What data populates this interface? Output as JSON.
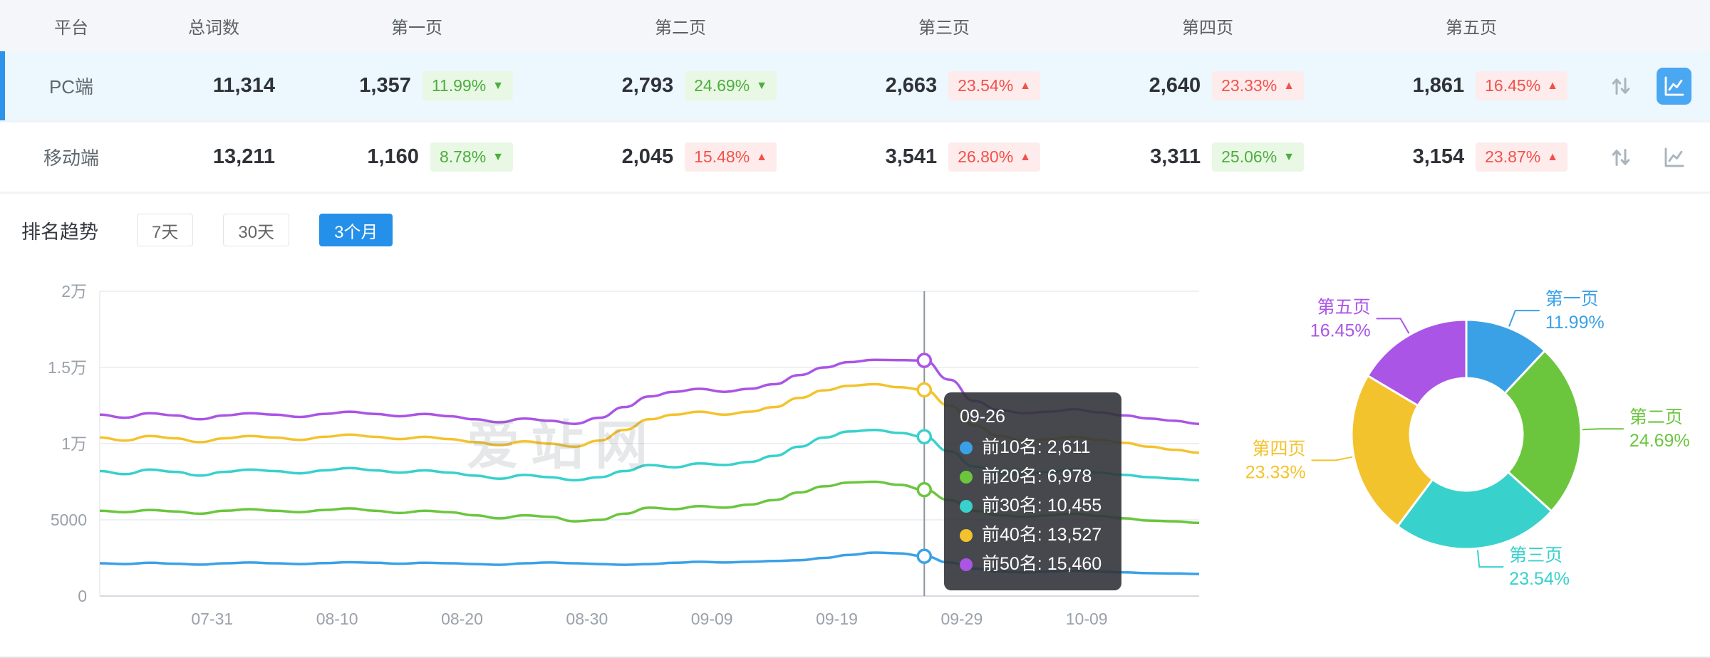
{
  "colors": {
    "accent_blue": "#2590e9",
    "good_green": "#4cae3d",
    "bad_red": "#f2514d",
    "series_blue": "#3ba1e6",
    "series_green": "#6bc63e",
    "series_cyan": "#38d1cc",
    "series_yellow": "#f3c32e",
    "series_purple": "#aa55e5"
  },
  "table": {
    "headers": {
      "platform": "平台",
      "total": "总词数",
      "page1": "第一页",
      "page2": "第二页",
      "page3": "第三页",
      "page4": "第四页",
      "page5": "第五页"
    },
    "rows": [
      {
        "platform": "PC端",
        "total": "11,314",
        "selected": true,
        "pages": [
          {
            "count": "1,357",
            "pct": "11.99%",
            "arrow": "▼",
            "trend": "down"
          },
          {
            "count": "2,793",
            "pct": "24.69%",
            "arrow": "▼",
            "trend": "down"
          },
          {
            "count": "2,663",
            "pct": "23.54%",
            "arrow": "▲",
            "trend": "up"
          },
          {
            "count": "2,640",
            "pct": "23.33%",
            "arrow": "▲",
            "trend": "up"
          },
          {
            "count": "1,861",
            "pct": "16.45%",
            "arrow": "▲",
            "trend": "up"
          }
        ]
      },
      {
        "platform": "移动端",
        "total": "13,211",
        "selected": false,
        "pages": [
          {
            "count": "1,160",
            "pct": "8.78%",
            "arrow": "▼",
            "trend": "down"
          },
          {
            "count": "2,045",
            "pct": "15.48%",
            "arrow": "▲",
            "trend": "up"
          },
          {
            "count": "3,541",
            "pct": "26.80%",
            "arrow": "▲",
            "trend": "up"
          },
          {
            "count": "3,311",
            "pct": "25.06%",
            "arrow": "▼",
            "trend": "down"
          },
          {
            "count": "3,154",
            "pct": "23.87%",
            "arrow": "▲",
            "trend": "up"
          }
        ]
      }
    ]
  },
  "trend": {
    "title": "排名趋势",
    "tabs": [
      "7天",
      "30天",
      "3个月"
    ],
    "active_tab": "3个月"
  },
  "watermark": "爱站网",
  "tooltip": {
    "title": "09-26",
    "items": [
      {
        "text": "前10名: 2,611",
        "color": "#3ba1e6"
      },
      {
        "text": "前20名: 6,978",
        "color": "#6bc63e"
      },
      {
        "text": "前30名: 10,455",
        "color": "#38d1cc"
      },
      {
        "text": "前40名: 13,527",
        "color": "#f3c32e"
      },
      {
        "text": "前50名: 15,460",
        "color": "#aa55e5"
      }
    ]
  },
  "chart_data": [
    {
      "type": "line",
      "title": "排名趋势(3个月)",
      "x_start_date": "07-22",
      "point_interval_days": 2,
      "x_span_days": 88,
      "x_ticks": [
        "07-31",
        "08-10",
        "08-20",
        "08-30",
        "09-09",
        "09-19",
        "09-29",
        "10-09"
      ],
      "x_tick_days": [
        9,
        19,
        29,
        39,
        49,
        59,
        69,
        79
      ],
      "ylim": [
        0,
        20000
      ],
      "y_ticks": [
        {
          "v": 0,
          "label": "0"
        },
        {
          "v": 5000,
          "label": "5000"
        },
        {
          "v": 10000,
          "label": "1万"
        },
        {
          "v": 15000,
          "label": "1.5万"
        },
        {
          "v": 20000,
          "label": "2万"
        }
      ],
      "grid": true,
      "legend_position": "none",
      "series": [
        {
          "name": "前10名",
          "color": "#3ba1e6",
          "values": [
            2150,
            2100,
            2180,
            2120,
            2060,
            2150,
            2200,
            2150,
            2100,
            2160,
            2220,
            2180,
            2120,
            2180,
            2150,
            2100,
            2050,
            2150,
            2200,
            2150,
            2100,
            2050,
            2100,
            2180,
            2250,
            2200,
            2250,
            2300,
            2350,
            2500,
            2700,
            2850,
            2800,
            2611,
            2200,
            1800,
            1600,
            1550,
            1600,
            1650,
            1600,
            1550,
            1500,
            1480,
            1450
          ]
        },
        {
          "name": "前20名",
          "color": "#6bc63e",
          "values": [
            5600,
            5500,
            5650,
            5550,
            5400,
            5600,
            5700,
            5600,
            5500,
            5650,
            5750,
            5600,
            5450,
            5600,
            5500,
            5300,
            5100,
            5300,
            5200,
            4900,
            5000,
            5400,
            5800,
            5700,
            5900,
            5800,
            6000,
            6300,
            6800,
            7200,
            7450,
            7500,
            7300,
            6978,
            6300,
            5600,
            5300,
            5200,
            5300,
            5400,
            5250,
            5100,
            4950,
            4900,
            4800
          ]
        },
        {
          "name": "前30名",
          "color": "#38d1cc",
          "values": [
            8200,
            8000,
            8300,
            8150,
            7900,
            8150,
            8300,
            8200,
            8050,
            8250,
            8400,
            8250,
            8100,
            8250,
            8100,
            7900,
            7700,
            7950,
            7800,
            7600,
            7800,
            8200,
            8600,
            8450,
            8700,
            8600,
            8800,
            9200,
            9800,
            10400,
            10800,
            10900,
            10700,
            10455,
            9500,
            8500,
            8100,
            8000,
            8150,
            8300,
            8100,
            7950,
            7800,
            7700,
            7600
          ]
        },
        {
          "name": "前40名",
          "color": "#f3c32e",
          "values": [
            10400,
            10200,
            10500,
            10350,
            10100,
            10350,
            10500,
            10400,
            10250,
            10450,
            10600,
            10450,
            10300,
            10450,
            10300,
            10100,
            9900,
            10150,
            10000,
            9800,
            10200,
            10900,
            11600,
            11900,
            12100,
            11900,
            12100,
            12400,
            13000,
            13500,
            13800,
            13900,
            13700,
            13527,
            12500,
            11200,
            10500,
            10200,
            10300,
            10450,
            10250,
            10050,
            9800,
            9600,
            9400
          ]
        },
        {
          "name": "前50名",
          "color": "#aa55e5",
          "values": [
            11900,
            11700,
            12000,
            11850,
            11600,
            11850,
            12000,
            11900,
            11750,
            11950,
            12100,
            11950,
            11800,
            11950,
            11800,
            11600,
            11400,
            11650,
            11500,
            11300,
            11700,
            12400,
            13100,
            13400,
            13600,
            13400,
            13600,
            13900,
            14500,
            15000,
            15350,
            15500,
            15480,
            15460,
            14200,
            12800,
            12200,
            12000,
            12100,
            12250,
            12050,
            11850,
            11650,
            11500,
            11300
          ]
        }
      ],
      "highlight": {
        "date": "09-26",
        "index": 33,
        "values": [
          2611,
          6978,
          10455,
          13527,
          15460
        ]
      }
    },
    {
      "type": "pie",
      "donut": true,
      "slices": [
        {
          "label": "第一页",
          "pct": 11.99,
          "pct_label": "11.99%",
          "color": "#3ba1e6"
        },
        {
          "label": "第二页",
          "pct": 24.69,
          "pct_label": "24.69%",
          "color": "#6bc63e"
        },
        {
          "label": "第三页",
          "pct": 23.54,
          "pct_label": "23.54%",
          "color": "#38d1cc"
        },
        {
          "label": "第四页",
          "pct": 23.33,
          "pct_label": "23.33%",
          "color": "#f3c32e"
        },
        {
          "label": "第五页",
          "pct": 16.45,
          "pct_label": "16.45%",
          "color": "#aa55e5"
        }
      ]
    }
  ]
}
